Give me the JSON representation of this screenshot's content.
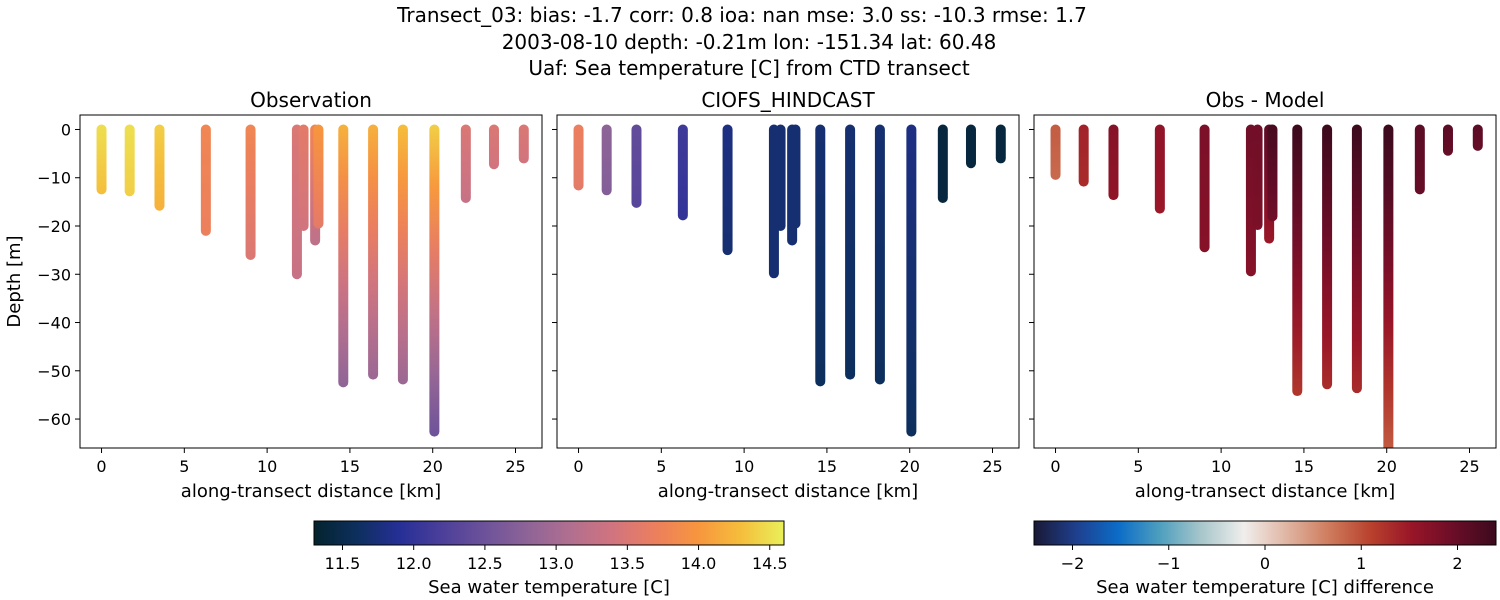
{
  "figure": {
    "title_lines": [
      "Transect_03: bias: -1.7  corr: 0.8  ioa: nan  mse: 3.0  ss: -10.3  rmse: 1.7",
      "2003-08-10 depth: -0.21m lon: -151.34 lat: 60.48",
      "Uaf: Sea temperature [C] from CTD transect"
    ]
  },
  "colors": {
    "thermal": [
      "#04232e",
      "#0d2f5d",
      "#262f96",
      "#4c3f9a",
      "#6d529a",
      "#8e6497",
      "#b16f8f",
      "#d1747f",
      "#ec7f5d",
      "#f7963e",
      "#f5be3c",
      "#e9f05a"
    ],
    "balance": [
      "#191935",
      "#1f3f8d",
      "#0b6cc7",
      "#4e9fbe",
      "#a9c7cb",
      "#f0eeec",
      "#e0b6a4",
      "#cf7d5e",
      "#b9422d",
      "#981528",
      "#6a0d28",
      "#3c0a1d"
    ]
  },
  "chart_data": [
    {
      "type": "scatter",
      "panel": "observation",
      "title": "Observation",
      "xlabel": "along-transect distance [km]",
      "ylabel": "Depth [m]",
      "xlim": [
        -1.3,
        26.6
      ],
      "ylim": [
        -66,
        3
      ],
      "xticks": [
        "0",
        "5",
        "10",
        "15",
        "20",
        "25"
      ],
      "xtick_values": [
        0,
        5,
        10,
        15,
        20,
        25
      ],
      "yticks": [
        "0",
        "−10",
        "−20",
        "−30",
        "−40",
        "−50",
        "−60"
      ],
      "ytick_values": [
        0,
        -10,
        -20,
        -30,
        -40,
        -50,
        -60
      ],
      "colormap": "thermal",
      "color_range": [
        11.3,
        14.6
      ],
      "profiles": [
        {
          "x": 0.0,
          "max_depth": -12.4,
          "top_value": 14.5,
          "bottom_value": 14.3
        },
        {
          "x": 1.7,
          "max_depth": -12.8,
          "top_value": 14.5,
          "bottom_value": 14.4
        },
        {
          "x": 3.5,
          "max_depth": -15.8,
          "top_value": 14.4,
          "bottom_value": 14.2
        },
        {
          "x": 6.3,
          "max_depth": -21.0,
          "top_value": 13.8,
          "bottom_value": 13.7
        },
        {
          "x": 9.0,
          "max_depth": -26.0,
          "top_value": 13.8,
          "bottom_value": 13.5
        },
        {
          "x": 11.8,
          "max_depth": -30.0,
          "top_value": 13.5,
          "bottom_value": 13.3
        },
        {
          "x": 12.2,
          "max_depth": -20.0,
          "top_value": 13.6,
          "bottom_value": 13.4
        },
        {
          "x": 12.9,
          "max_depth": -23.0,
          "top_value": 13.8,
          "bottom_value": 13.2
        },
        {
          "x": 13.1,
          "max_depth": -19.5,
          "top_value": 14.0,
          "bottom_value": 13.6
        },
        {
          "x": 14.6,
          "max_depth": -52.4,
          "top_value": 14.2,
          "bottom_value": 12.8
        },
        {
          "x": 16.4,
          "max_depth": -50.8,
          "top_value": 14.2,
          "bottom_value": 12.9
        },
        {
          "x": 18.2,
          "max_depth": -51.8,
          "top_value": 14.3,
          "bottom_value": 12.9
        },
        {
          "x": 20.1,
          "max_depth": -62.6,
          "top_value": 14.4,
          "bottom_value": 12.5
        },
        {
          "x": 22.0,
          "max_depth": -14.2,
          "top_value": 13.5,
          "bottom_value": 13.3
        },
        {
          "x": 23.7,
          "max_depth": -7.2,
          "top_value": 13.5,
          "bottom_value": 13.4
        },
        {
          "x": 25.5,
          "max_depth": -6.0,
          "top_value": 13.5,
          "bottom_value": 13.4
        }
      ]
    },
    {
      "type": "scatter",
      "panel": "model",
      "title": "CIOFS_HINDCAST",
      "xlabel": "along-transect distance [km]",
      "ylabel": "",
      "xlim": [
        -1.3,
        26.6
      ],
      "ylim": [
        -66,
        3
      ],
      "xticks": [
        "0",
        "5",
        "10",
        "15",
        "20",
        "25"
      ],
      "xtick_values": [
        0,
        5,
        10,
        15,
        20,
        25
      ],
      "colormap": "thermal",
      "color_range": [
        11.3,
        14.6
      ],
      "profiles": [
        {
          "x": 0.0,
          "max_depth": -11.6,
          "top_value": 13.7,
          "bottom_value": 13.6
        },
        {
          "x": 1.7,
          "max_depth": -12.6,
          "top_value": 12.8,
          "bottom_value": 12.7
        },
        {
          "x": 3.5,
          "max_depth": -15.2,
          "top_value": 12.4,
          "bottom_value": 12.3
        },
        {
          "x": 6.3,
          "max_depth": -17.8,
          "top_value": 12.1,
          "bottom_value": 12.0
        },
        {
          "x": 9.0,
          "max_depth": -25.0,
          "top_value": 11.8,
          "bottom_value": 11.7
        },
        {
          "x": 11.8,
          "max_depth": -29.8,
          "top_value": 11.7,
          "bottom_value": 11.7
        },
        {
          "x": 12.2,
          "max_depth": -20.0,
          "top_value": 11.7,
          "bottom_value": 11.7
        },
        {
          "x": 12.9,
          "max_depth": -23.0,
          "top_value": 11.7,
          "bottom_value": 11.7
        },
        {
          "x": 13.1,
          "max_depth": -19.5,
          "top_value": 11.7,
          "bottom_value": 11.7
        },
        {
          "x": 14.6,
          "max_depth": -52.2,
          "top_value": 11.7,
          "bottom_value": 11.6
        },
        {
          "x": 16.4,
          "max_depth": -50.8,
          "top_value": 11.7,
          "bottom_value": 11.6
        },
        {
          "x": 18.2,
          "max_depth": -51.8,
          "top_value": 11.7,
          "bottom_value": 11.6
        },
        {
          "x": 20.1,
          "max_depth": -62.6,
          "top_value": 11.8,
          "bottom_value": 11.6
        },
        {
          "x": 22.0,
          "max_depth": -14.2,
          "top_value": 11.4,
          "bottom_value": 11.4
        },
        {
          "x": 23.7,
          "max_depth": -7.0,
          "top_value": 11.4,
          "bottom_value": 11.4
        },
        {
          "x": 25.5,
          "max_depth": -6.0,
          "top_value": 11.4,
          "bottom_value": 11.4
        }
      ]
    },
    {
      "type": "scatter",
      "panel": "difference",
      "title": "Obs - Model",
      "xlabel": "along-transect distance [km]",
      "ylabel": "",
      "xlim": [
        -1.3,
        26.6
      ],
      "ylim": [
        -66,
        3
      ],
      "xticks": [
        "0",
        "5",
        "10",
        "15",
        "20",
        "25"
      ],
      "xtick_values": [
        0,
        5,
        10,
        15,
        20,
        25
      ],
      "colormap": "balance",
      "color_range": [
        -2.4,
        2.4
      ],
      "profiles": [
        {
          "x": 0.0,
          "max_depth": -9.4,
          "top_value": 0.9,
          "bottom_value": 0.8
        },
        {
          "x": 1.7,
          "max_depth": -10.8,
          "top_value": 1.4,
          "bottom_value": 1.3
        },
        {
          "x": 3.5,
          "max_depth": -13.6,
          "top_value": 1.7,
          "bottom_value": 1.6
        },
        {
          "x": 6.3,
          "max_depth": -16.4,
          "top_value": 1.6,
          "bottom_value": 1.5
        },
        {
          "x": 9.0,
          "max_depth": -24.4,
          "top_value": 1.8,
          "bottom_value": 1.7
        },
        {
          "x": 11.8,
          "max_depth": -29.4,
          "top_value": 1.9,
          "bottom_value": 1.7
        },
        {
          "x": 12.2,
          "max_depth": -19.8,
          "top_value": 1.9,
          "bottom_value": 1.8
        },
        {
          "x": 12.9,
          "max_depth": -22.6,
          "top_value": 2.1,
          "bottom_value": 1.5
        },
        {
          "x": 13.1,
          "max_depth": -18.0,
          "top_value": 2.3,
          "bottom_value": 1.9
        },
        {
          "x": 14.6,
          "max_depth": -54.2,
          "top_value": 2.4,
          "bottom_value": 1.2
        },
        {
          "x": 16.4,
          "max_depth": -52.8,
          "top_value": 2.4,
          "bottom_value": 1.3
        },
        {
          "x": 18.2,
          "max_depth": -53.6,
          "top_value": 2.4,
          "bottom_value": 1.3
        },
        {
          "x": 20.1,
          "max_depth": -66.0,
          "top_value": 2.5,
          "bottom_value": 0.9
        },
        {
          "x": 22.0,
          "max_depth": -12.4,
          "top_value": 2.1,
          "bottom_value": 2.0
        },
        {
          "x": 23.7,
          "max_depth": -4.4,
          "top_value": 2.1,
          "bottom_value": 2.0
        },
        {
          "x": 25.5,
          "max_depth": -3.4,
          "top_value": 2.1,
          "bottom_value": 2.0
        }
      ]
    }
  ],
  "colorbars": [
    {
      "label": "Sea water temperature [C]",
      "colormap": "thermal",
      "range": [
        11.3,
        14.6
      ],
      "tick_values": [
        11.5,
        12.0,
        12.5,
        13.0,
        13.5,
        14.0,
        14.5
      ],
      "tick_labels": [
        "11.5",
        "12.0",
        "12.5",
        "13.0",
        "13.5",
        "14.0",
        "14.5"
      ]
    },
    {
      "label": "Sea water temperature [C] difference",
      "colormap": "balance",
      "range": [
        -2.4,
        2.4
      ],
      "tick_values": [
        -2,
        -1,
        0,
        1,
        2
      ],
      "tick_labels": [
        "−2",
        "−1",
        "0",
        "1",
        "2"
      ]
    }
  ]
}
